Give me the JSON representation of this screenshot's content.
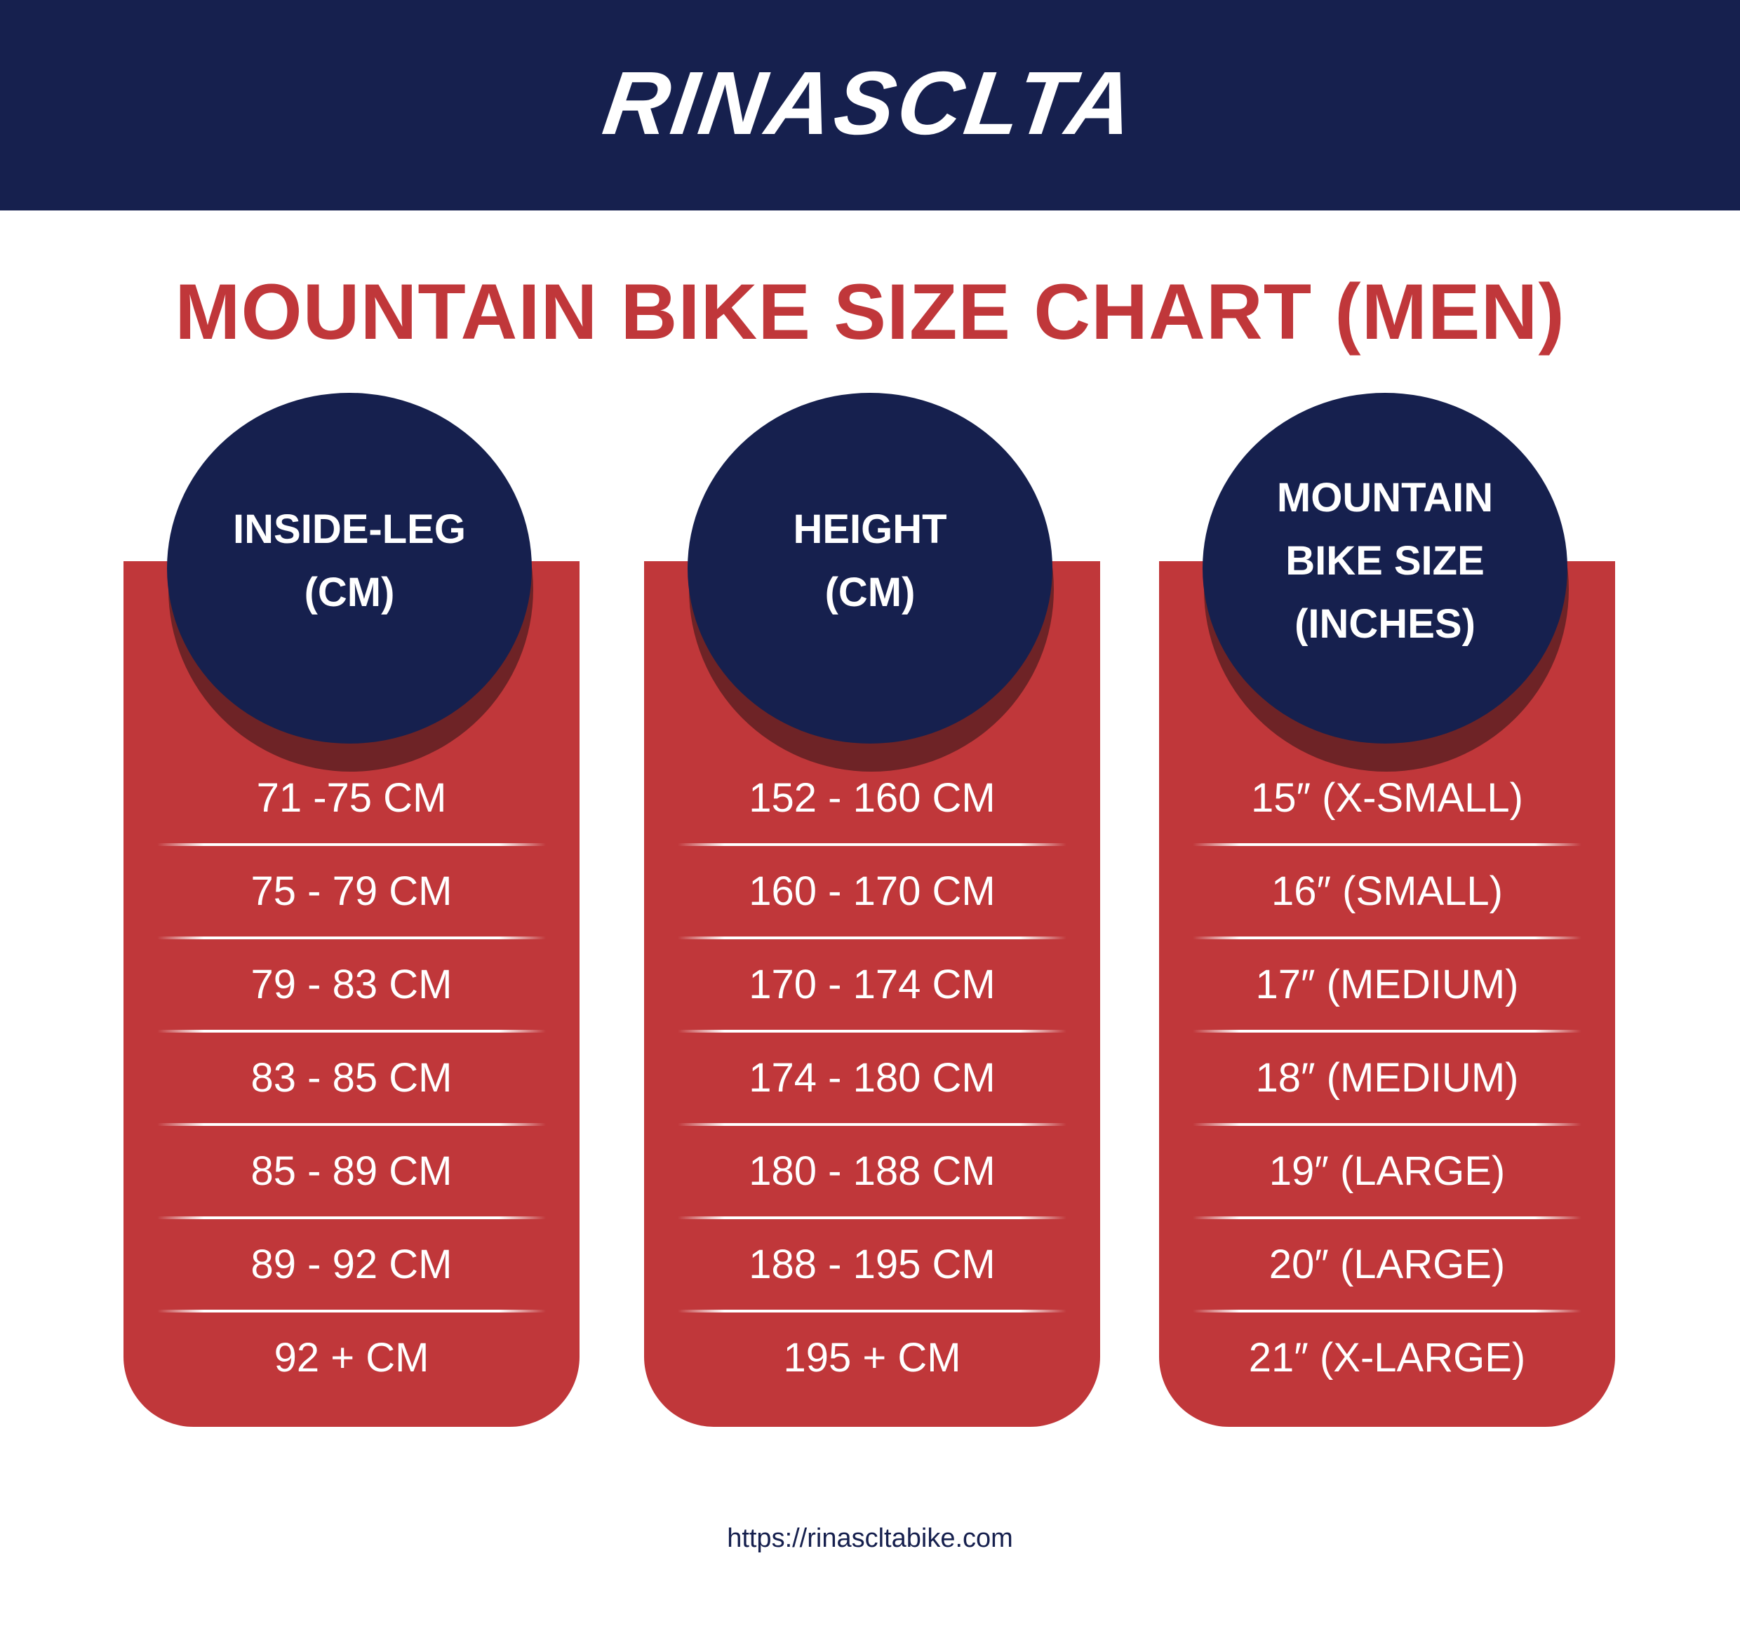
{
  "brand": {
    "name": "RINASCLTA"
  },
  "title": "MOUNTAIN BIKE SIZE CHART (MEN)",
  "columns": [
    {
      "header": "INSIDE-LEG\n(CM)",
      "rows": [
        "71 -75 CM",
        "75 - 79 CM",
        "79 - 83 CM",
        "83 - 85 CM",
        "85 - 89 CM",
        "89 - 92 CM",
        "92 + CM"
      ]
    },
    {
      "header": "HEIGHT\n(CM)",
      "rows": [
        "152 - 160 CM",
        "160 - 170 CM",
        "170 - 174 CM",
        "174 - 180 CM",
        "180 - 188 CM",
        "188 - 195 CM",
        "195 + CM"
      ]
    },
    {
      "header": "MOUNTAIN\nBIKE SIZE\n(INCHES)",
      "rows": [
        "15″ (X-SMALL)",
        "16″ (SMALL)",
        "17″ (MEDIUM)",
        "18″ (MEDIUM)",
        "19″ (LARGE)",
        "20″ (LARGE)",
        "21″ (X-LARGE)"
      ]
    }
  ],
  "footer": {
    "url": "https://rinascltabike.com"
  },
  "colors": {
    "navy": "#16204e",
    "red": "#c0373a",
    "shadow": "#6e2326",
    "white": "#ffffff"
  }
}
